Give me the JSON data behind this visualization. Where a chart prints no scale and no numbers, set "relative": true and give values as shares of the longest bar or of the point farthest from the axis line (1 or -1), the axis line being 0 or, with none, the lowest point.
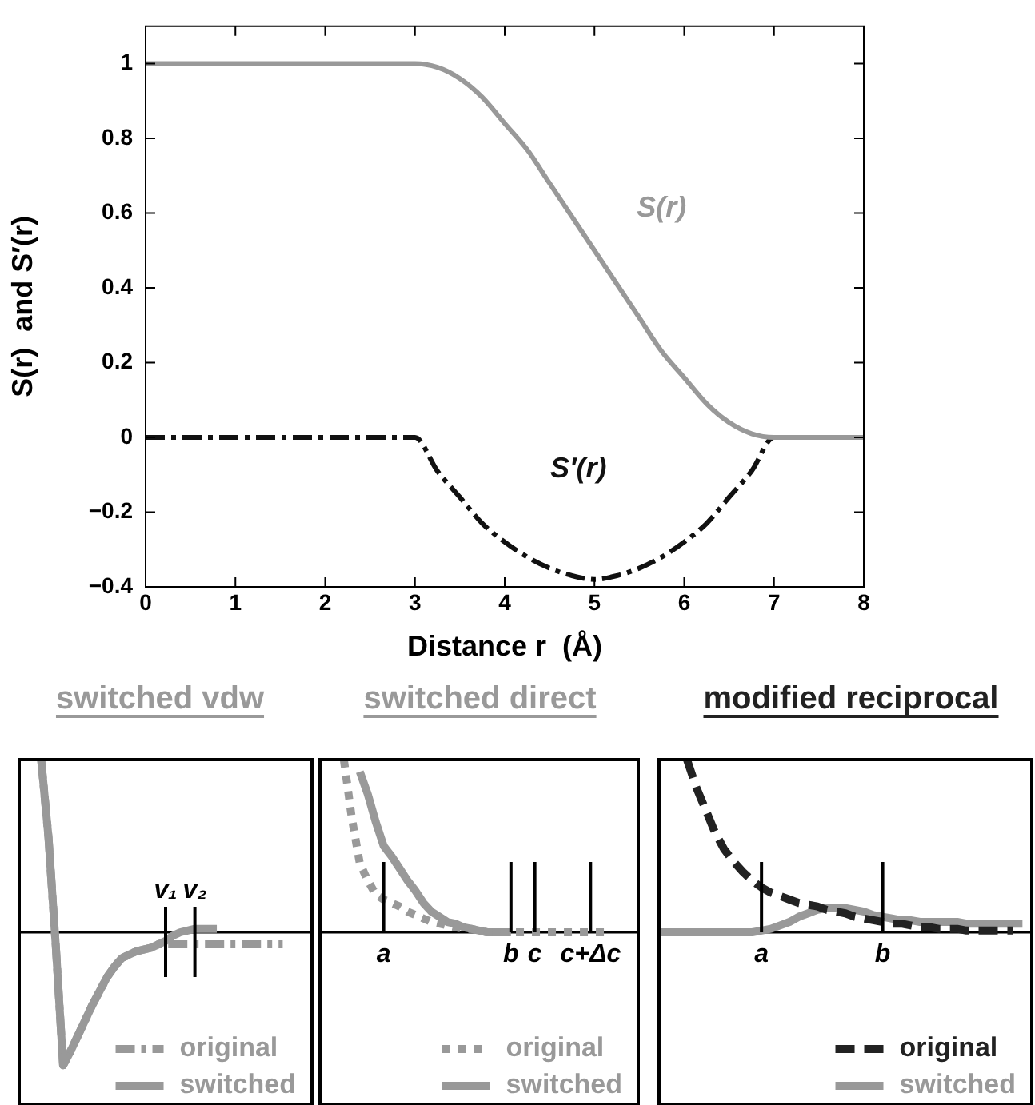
{
  "chart_data": [
    {
      "type": "line",
      "xlabel": "Distance r  (Å)",
      "ylabel": "S(r)  and S′(r)",
      "x": [
        0,
        3,
        3.25,
        3.5,
        3.75,
        4,
        4.25,
        4.5,
        4.75,
        5,
        5.25,
        5.5,
        5.75,
        6,
        6.25,
        6.5,
        6.75,
        7,
        8
      ],
      "xlim": [
        0,
        8
      ],
      "xticks": [
        0,
        1,
        2,
        3,
        4,
        5,
        6,
        7,
        8
      ],
      "ylim": [
        -0.4,
        1.1
      ],
      "yticks": [
        -0.4,
        -0.2,
        0,
        0.2,
        0.4,
        0.6,
        0.8,
        1
      ],
      "series": [
        {
          "name": "S(r)",
          "color": "#999999",
          "line_style": "solid",
          "values": [
            1,
            1,
            0.99,
            0.96,
            0.91,
            0.84,
            0.77,
            0.68,
            0.59,
            0.5,
            0.41,
            0.32,
            0.23,
            0.16,
            0.09,
            0.04,
            0.01,
            0,
            0
          ]
        },
        {
          "name": "S′(r)",
          "color": "#111111",
          "line_style": "dashdot",
          "values": [
            0,
            0,
            -0.09,
            -0.16,
            -0.23,
            -0.28,
            -0.32,
            -0.35,
            -0.37,
            -0.38,
            -0.37,
            -0.35,
            -0.32,
            -0.28,
            -0.23,
            -0.16,
            -0.09,
            0,
            0
          ]
        }
      ]
    },
    {
      "type": "line",
      "title": "switched vdw",
      "relative": true,
      "legend": "bottom right",
      "categories": [
        null,
        null,
        null,
        null,
        null,
        null,
        null,
        null,
        null,
        null,
        null,
        null,
        null,
        null,
        null,
        null,
        null,
        null,
        null,
        null,
        "v₁",
        null,
        null,
        null,
        "v₂",
        null,
        null,
        null,
        null,
        null,
        null,
        null,
        null,
        null,
        null,
        null,
        null,
        null,
        null,
        null,
        null
      ],
      "series": [
        {
          "name": "original",
          "color": "#999999",
          "line_style": "dashdot",
          "values": [
            null,
            null,
            null,
            1,
            0.55,
            -0.08,
            -0.77,
            -0.69,
            -0.6,
            -0.51,
            -0.42,
            -0.34,
            -0.26,
            -0.2,
            -0.15,
            -0.13,
            -0.11,
            -0.1,
            -0.09,
            -0.07,
            -0.07,
            -0.07,
            -0.07,
            -0.07,
            -0.07,
            -0.07,
            -0.07,
            -0.07,
            -0.07,
            -0.07,
            -0.07,
            -0.07,
            -0.07,
            -0.07,
            -0.07,
            -0.07,
            -0.07,
            null,
            null,
            null,
            null
          ]
        },
        {
          "name": "switched",
          "color": "#999999",
          "line_style": "solid",
          "values": [
            null,
            null,
            null,
            1,
            0.55,
            -0.08,
            -0.77,
            -0.69,
            -0.6,
            -0.51,
            -0.42,
            -0.34,
            -0.26,
            -0.2,
            -0.15,
            -0.13,
            -0.11,
            -0.1,
            -0.09,
            -0.07,
            -0.05,
            -0.02,
            0,
            0.01,
            0.02,
            0.02,
            0.02,
            0.02,
            null,
            null,
            null,
            null,
            null,
            null,
            null,
            null,
            null,
            null,
            null,
            null,
            null
          ]
        }
      ],
      "ref_lines": [
        {
          "axis": "x",
          "value": "v₁"
        },
        {
          "axis": "x",
          "value": "v₂"
        }
      ]
    },
    {
      "type": "line",
      "title": "switched direct",
      "relative": true,
      "legend": "bottom right",
      "categories": [
        null,
        null,
        null,
        null,
        null,
        null,
        null,
        null,
        "a",
        null,
        null,
        null,
        null,
        null,
        null,
        null,
        null,
        null,
        null,
        null,
        null,
        null,
        null,
        null,
        "b",
        null,
        null,
        "c",
        null,
        null,
        null,
        null,
        null,
        null,
        "c+Δc",
        null,
        null,
        null,
        null,
        null,
        null
      ],
      "series": [
        {
          "name": "original",
          "color": "#999999",
          "line_style": "dotted",
          "values": [
            null,
            null,
            null,
            1,
            0.66,
            0.4,
            0.3,
            0.22,
            0.19,
            0.17,
            0.15,
            0.12,
            0.1,
            0.08,
            0.06,
            0.05,
            0.04,
            0.03,
            0.02,
            0.02,
            0.01,
            0,
            0,
            0,
            0,
            0,
            0,
            0,
            0,
            0,
            0,
            0,
            0,
            0,
            0,
            0,
            0,
            null,
            null,
            null,
            null
          ]
        },
        {
          "name": "switched",
          "color": "#999999",
          "line_style": "solid",
          "values": [
            null,
            null,
            null,
            null,
            null,
            0.93,
            0.8,
            0.64,
            0.5,
            0.44,
            0.37,
            0.3,
            0.24,
            0.17,
            0.12,
            0.09,
            0.06,
            0.05,
            0.03,
            0.02,
            0.01,
            0,
            0,
            0,
            0,
            null,
            null,
            null,
            null,
            null,
            null,
            null,
            null,
            null,
            null,
            null,
            null,
            null,
            null,
            null,
            null
          ]
        }
      ],
      "ref_lines": [
        {
          "axis": "x",
          "value": "a"
        },
        {
          "axis": "x",
          "value": "b"
        },
        {
          "axis": "x",
          "value": "c"
        },
        {
          "axis": "x",
          "value": "c+Δc"
        }
      ]
    },
    {
      "type": "line",
      "title": "modified reciprocal",
      "relative": true,
      "legend": "bottom right",
      "categories": [
        null,
        null,
        null,
        null,
        null,
        null,
        null,
        null,
        null,
        null,
        null,
        "a",
        null,
        null,
        null,
        null,
        null,
        null,
        null,
        null,
        null,
        null,
        null,
        null,
        "b",
        null,
        null,
        null,
        null,
        null,
        null,
        null,
        null,
        null,
        null,
        null,
        null,
        null,
        null,
        null,
        null
      ],
      "series": [
        {
          "name": "original",
          "color": "#222222",
          "line_style": "dashed",
          "values": [
            null,
            null,
            null,
            1,
            0.84,
            0.71,
            0.58,
            0.48,
            0.41,
            0.35,
            0.3,
            0.26,
            0.23,
            0.21,
            0.19,
            0.17,
            0.16,
            0.15,
            0.13,
            0.12,
            0.11,
            0.09,
            0.08,
            0.07,
            0.06,
            0.05,
            0.05,
            0.04,
            0.03,
            0.03,
            0.02,
            0.02,
            0.02,
            0.01,
            0.01,
            0.01,
            0.01,
            0.01,
            0.01,
            null,
            null
          ]
        },
        {
          "name": "switched",
          "color": "#999999",
          "line_style": "solid",
          "values": [
            0,
            0,
            0,
            0,
            0,
            0,
            0,
            0,
            0,
            0,
            0,
            0.01,
            0.02,
            0.04,
            0.06,
            0.09,
            0.11,
            0.13,
            0.14,
            0.14,
            0.14,
            0.13,
            0.12,
            0.1,
            0.09,
            0.08,
            0.07,
            0.07,
            0.06,
            0.06,
            0.06,
            0.06,
            0.06,
            0.05,
            0.05,
            0.05,
            0.05,
            0.05,
            0.05,
            0.05,
            null
          ]
        }
      ],
      "ref_lines": [
        {
          "axis": "x",
          "value": "a"
        },
        {
          "axis": "x",
          "value": "b"
        }
      ]
    }
  ]
}
